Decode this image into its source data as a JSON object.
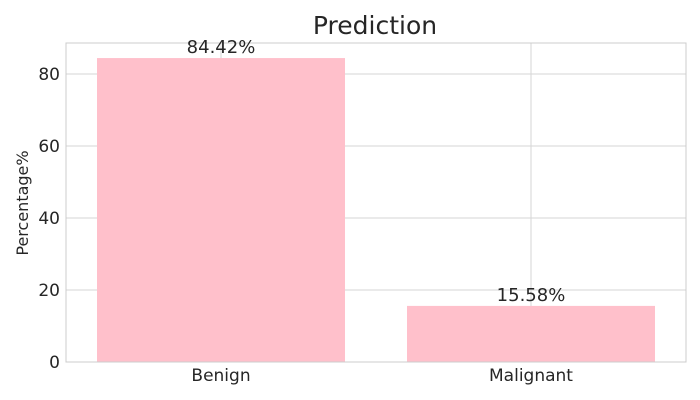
{
  "chart_data": {
    "type": "bar",
    "title": "Prediction",
    "xlabel": "",
    "ylabel": "Percentage%",
    "categories": [
      "Benign",
      "Malignant"
    ],
    "values": [
      84.42,
      15.58
    ],
    "data_labels": [
      "84.42%",
      "15.58%"
    ],
    "ylim": [
      0,
      88.6
    ],
    "yticks": [
      0,
      20,
      40,
      60,
      80
    ],
    "grid": true,
    "legend": "none",
    "bar_color": "#ffc0cb",
    "grid_color": "#d6d6d6",
    "text_color": "#262626"
  }
}
